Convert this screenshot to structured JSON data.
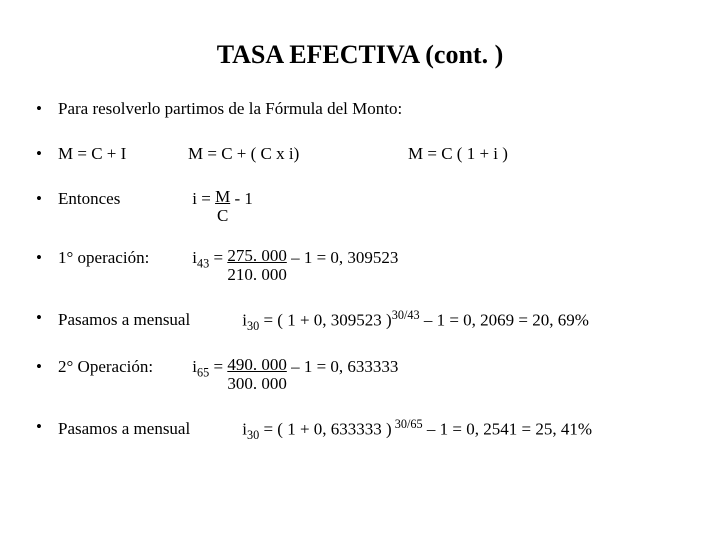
{
  "title": {
    "text": "TASA EFECTIVA (cont. )",
    "fontsize": 26,
    "weight": "bold"
  },
  "body_fontsize": 17,
  "colors": {
    "text": "#000000",
    "background": "#ffffff"
  },
  "bullets": {
    "b1": "Para resolverlo partimos de la Fórmula del Monto:",
    "b2": {
      "a": "M = C + I",
      "b": "M = C + ( C x i)",
      "c": "M = C ( 1 + i )"
    },
    "b3": {
      "label": "Entonces",
      "lhs": "i = ",
      "frac_num": "M",
      "frac_den": "C",
      "rhs": " - 1"
    },
    "b4": {
      "label": " 1° operación:",
      "sub": "43",
      "eq_pre": "i",
      "eq_mid": " = ",
      "frac_num": "275. 000",
      "frac_den": "210. 000",
      "eq_post": " – 1 = 0, 309523"
    },
    "b5": {
      "label": "Pasamos a mensual",
      "sub": "30",
      "sup": "30/43",
      "pre": "i",
      "mid1": " = ( 1 + 0, 309523 )",
      "mid2": " – 1 = 0, 2069 = 20, 69%"
    },
    "b6": {
      "label": "2° Operación:",
      "sub": "65",
      "eq_pre": "i",
      "eq_mid": " = ",
      "frac_num": "490. 000",
      "frac_den": "300. 000",
      "eq_post": " – 1 = 0, 633333"
    },
    "b7": {
      "label": "Pasamos a mensual",
      "sub": "30",
      "sup": " 30/65",
      "pre": "i",
      "mid1": " = ( 1 + 0, 633333 )",
      "mid2": " – 1 = 0, 2541 = 25, 41%"
    }
  }
}
